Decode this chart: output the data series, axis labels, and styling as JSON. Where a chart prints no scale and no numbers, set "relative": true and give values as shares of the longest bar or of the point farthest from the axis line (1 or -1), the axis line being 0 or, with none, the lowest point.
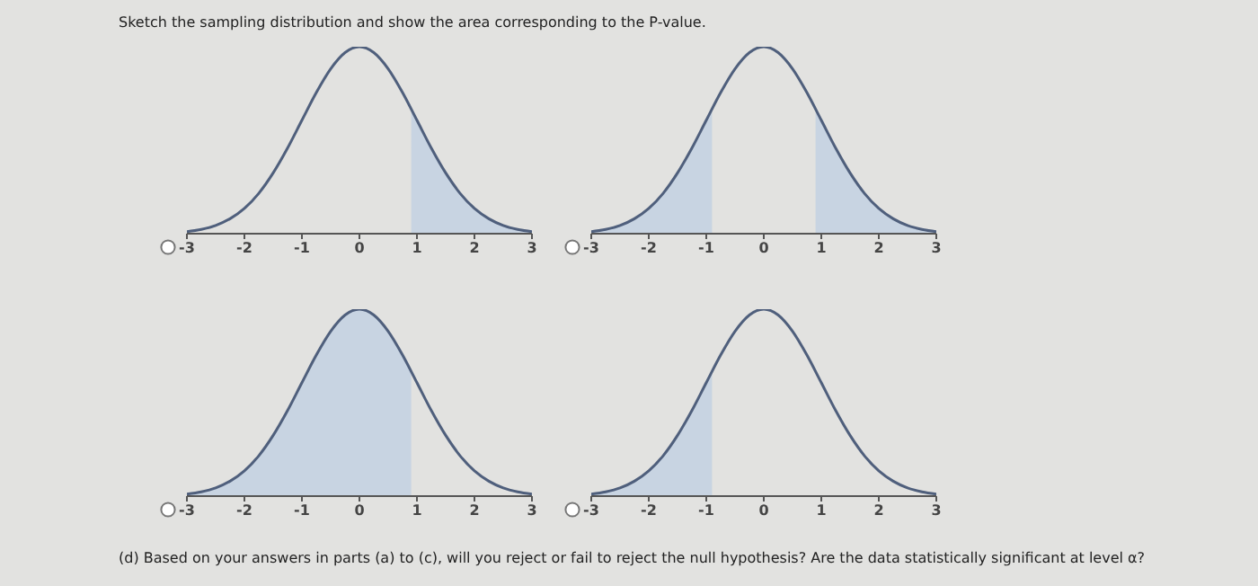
{
  "chart_data": [
    {
      "type": "line",
      "title": "Sketch the sampling distribution and show the area corresponding to the P-value.",
      "relative": true,
      "xlim": [
        -3,
        3
      ],
      "xticks": [
        -3,
        -2,
        -1,
        0,
        1,
        2,
        3
      ],
      "series": [
        {
          "type": "line",
          "color": "#4f5f7c",
          "x": [
            -3,
            -2.75,
            -2.5,
            -2.25,
            -2,
            -1.75,
            -1.5,
            -1.25,
            -1,
            -0.75,
            -0.5,
            -0.25,
            0,
            0.25,
            0.5,
            0.75,
            1,
            1.25,
            1.5,
            1.75,
            2,
            2.25,
            2.5,
            2.75,
            3
          ],
          "values": [
            0.011,
            0.023,
            0.044,
            0.08,
            0.135,
            0.216,
            0.325,
            0.458,
            0.607,
            0.755,
            0.882,
            0.969,
            1,
            0.969,
            0.882,
            0.755,
            0.607,
            0.458,
            0.325,
            0.216,
            0.135,
            0.08,
            0.044,
            0.023,
            0.011
          ]
        },
        {
          "type": "area",
          "color": "#c8d4e2",
          "x": [
            0.9,
            1,
            1.25,
            1.5,
            1.75,
            2,
            2.25,
            2.5,
            2.75,
            3
          ],
          "values": [
            0.667,
            0.607,
            0.458,
            0.325,
            0.216,
            0.135,
            0.08,
            0.044,
            0.023,
            0.011
          ]
        }
      ]
    },
    {
      "type": "line",
      "relative": true,
      "xlim": [
        -3,
        3
      ],
      "xticks": [
        -3,
        -2,
        -1,
        0,
        1,
        2,
        3
      ],
      "series": [
        {
          "type": "line",
          "color": "#4f5f7c",
          "x": [
            -3,
            -2.75,
            -2.5,
            -2.25,
            -2,
            -1.75,
            -1.5,
            -1.25,
            -1,
            -0.75,
            -0.5,
            -0.25,
            0,
            0.25,
            0.5,
            0.75,
            1,
            1.25,
            1.5,
            1.75,
            2,
            2.25,
            2.5,
            2.75,
            3
          ],
          "values": [
            0.011,
            0.023,
            0.044,
            0.08,
            0.135,
            0.216,
            0.325,
            0.458,
            0.607,
            0.755,
            0.882,
            0.969,
            1,
            0.969,
            0.882,
            0.755,
            0.607,
            0.458,
            0.325,
            0.216,
            0.135,
            0.08,
            0.044,
            0.023,
            0.011
          ]
        },
        {
          "type": "area",
          "color": "#c8d4e2",
          "x": [
            -3,
            -2.75,
            -2.5,
            -2.25,
            -2,
            -1.75,
            -1.5,
            -1.25,
            -1,
            -0.9
          ],
          "values": [
            0.011,
            0.023,
            0.044,
            0.08,
            0.135,
            0.216,
            0.325,
            0.458,
            0.607,
            0.667
          ]
        },
        {
          "type": "area",
          "color": "#c8d4e2",
          "x": [
            0.9,
            1,
            1.25,
            1.5,
            1.75,
            2,
            2.25,
            2.5,
            2.75,
            3
          ],
          "values": [
            0.667,
            0.607,
            0.458,
            0.325,
            0.216,
            0.135,
            0.08,
            0.044,
            0.023,
            0.011
          ]
        }
      ]
    },
    {
      "type": "line",
      "relative": true,
      "xlim": [
        -3,
        3
      ],
      "xticks": [
        -3,
        -2,
        -1,
        0,
        1,
        2,
        3
      ],
      "series": [
        {
          "type": "line",
          "color": "#4f5f7c",
          "x": [
            -3,
            -2.75,
            -2.5,
            -2.25,
            -2,
            -1.75,
            -1.5,
            -1.25,
            -1,
            -0.75,
            -0.5,
            -0.25,
            0,
            0.25,
            0.5,
            0.75,
            1,
            1.25,
            1.5,
            1.75,
            2,
            2.25,
            2.5,
            2.75,
            3
          ],
          "values": [
            0.011,
            0.023,
            0.044,
            0.08,
            0.135,
            0.216,
            0.325,
            0.458,
            0.607,
            0.755,
            0.882,
            0.969,
            1,
            0.969,
            0.882,
            0.755,
            0.607,
            0.458,
            0.325,
            0.216,
            0.135,
            0.08,
            0.044,
            0.023,
            0.011
          ]
        },
        {
          "type": "area",
          "color": "#c8d4e2",
          "x": [
            -3,
            -2.75,
            -2.5,
            -2.25,
            -2,
            -1.75,
            -1.5,
            -1.25,
            -1,
            -0.75,
            -0.5,
            -0.25,
            0,
            0.25,
            0.5,
            0.75,
            0.9
          ],
          "values": [
            0.011,
            0.023,
            0.044,
            0.08,
            0.135,
            0.216,
            0.325,
            0.458,
            0.607,
            0.755,
            0.882,
            0.969,
            1,
            0.969,
            0.882,
            0.755,
            0.667
          ]
        }
      ]
    },
    {
      "type": "line",
      "relative": true,
      "xlim": [
        -3,
        3
      ],
      "xticks": [
        -3,
        -2,
        -1,
        0,
        1,
        2,
        3
      ],
      "annotations": [
        "(d) Based on your answers in parts (a) to (c), will you reject or fail to reject the null hypothesis? Are the data statistically significant at level α?"
      ],
      "series": [
        {
          "type": "line",
          "color": "#4f5f7c",
          "x": [
            -3,
            -2.75,
            -2.5,
            -2.25,
            -2,
            -1.75,
            -1.5,
            -1.25,
            -1,
            -0.75,
            -0.5,
            -0.25,
            0,
            0.25,
            0.5,
            0.75,
            1,
            1.25,
            1.5,
            1.75,
            2,
            2.25,
            2.5,
            2.75,
            3
          ],
          "values": [
            0.011,
            0.023,
            0.044,
            0.08,
            0.135,
            0.216,
            0.325,
            0.458,
            0.607,
            0.755,
            0.882,
            0.969,
            1,
            0.969,
            0.882,
            0.755,
            0.607,
            0.458,
            0.325,
            0.216,
            0.135,
            0.08,
            0.044,
            0.023,
            0.011
          ]
        },
        {
          "type": "area",
          "color": "#c8d4e2",
          "x": [
            -3,
            -2.75,
            -2.5,
            -2.25,
            -2,
            -1.75,
            -1.5,
            -1.25,
            -1,
            -0.9
          ],
          "values": [
            0.011,
            0.023,
            0.044,
            0.08,
            0.135,
            0.216,
            0.325,
            0.458,
            0.607,
            0.667
          ]
        }
      ]
    }
  ]
}
